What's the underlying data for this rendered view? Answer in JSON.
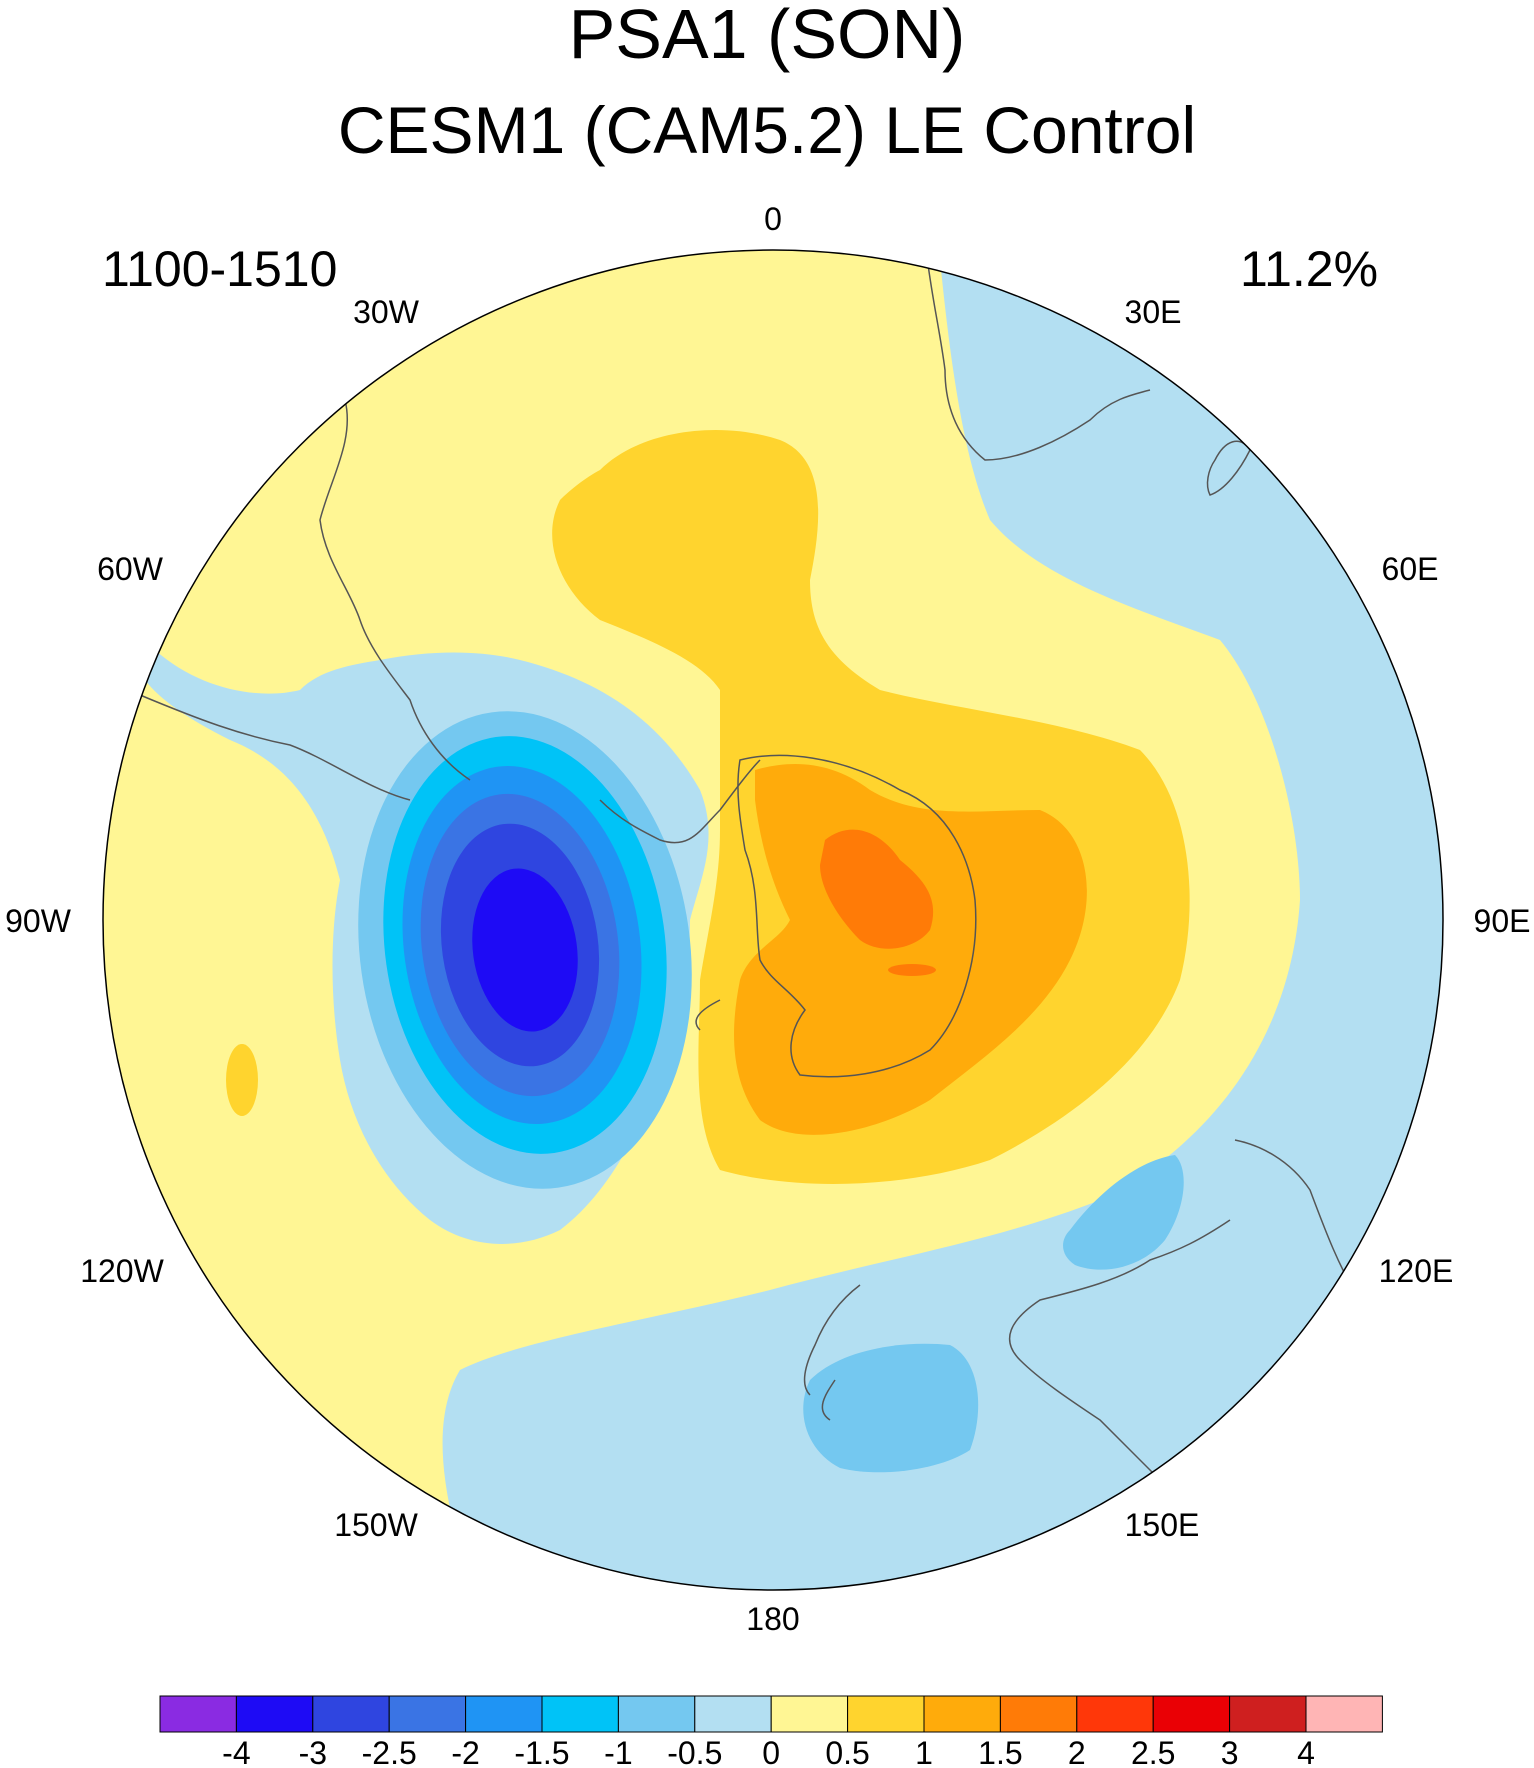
{
  "header": {
    "title": "PSA1 (SON)",
    "subtitle": "CESM1 (CAM5.2) LE Control"
  },
  "annotations": {
    "period": "1100-1510",
    "variance_explained": "11.2%"
  },
  "map": {
    "projection": "polar stereographic (Southern Hemisphere)",
    "longitude_labels": [
      "0",
      "30E",
      "60E",
      "90E",
      "120E",
      "150E",
      "180",
      "150W",
      "120W",
      "90W",
      "60W",
      "30W"
    ]
  },
  "colorbar": {
    "labels": [
      "-4",
      "-3",
      "-2.5",
      "-2",
      "-1.5",
      "-1",
      "-0.5",
      "0",
      "0.5",
      "1",
      "1.5",
      "2",
      "2.5",
      "3",
      "4"
    ],
    "colors": [
      "#8a2be2",
      "#1e0bf5",
      "#2f45e0",
      "#3a74e4",
      "#1f94f4",
      "#00c3f7",
      "#74c8f0",
      "#b3dff2",
      "#fff694",
      "#ffd42e",
      "#ffab0b",
      "#ff7b07",
      "#ff3709",
      "#ea0005",
      "#cf1f1f",
      "#ffb5b5"
    ]
  }
}
